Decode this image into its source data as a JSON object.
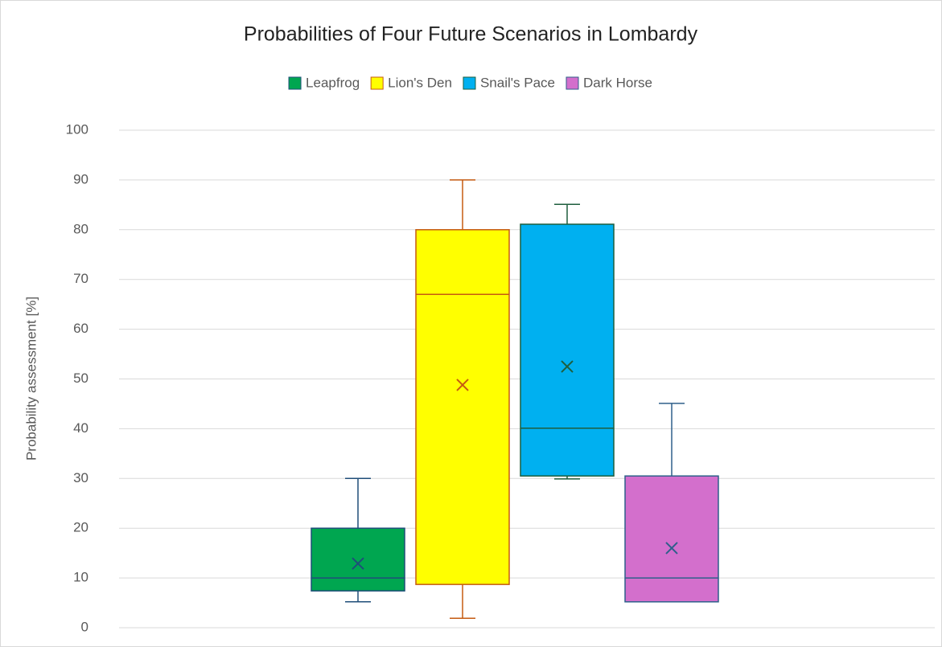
{
  "chart_data": {
    "type": "box",
    "title": "Probabilities of Four Future Scenarios in Lombardy",
    "y_label": "Probability assessment [%]",
    "ylim": [
      0,
      100
    ],
    "yticks": [
      0,
      10,
      20,
      30,
      40,
      50,
      60,
      70,
      80,
      90,
      100
    ],
    "grid": true,
    "legend": "top",
    "series": [
      {
        "name": "Leapfrog",
        "color": "#00a650",
        "line_color": "#1f4e79",
        "min": 5.2,
        "q1": 7.4,
        "median": 10,
        "q3": 20,
        "max": 30,
        "mean": 12.9
      },
      {
        "name": "Lion's Den",
        "color": "#ffff00",
        "line_color": "#c55a11",
        "min": 1.9,
        "q1": 8.7,
        "median": 67,
        "q3": 80,
        "max": 90,
        "mean": 48.8
      },
      {
        "name": "Snail's Pace",
        "color": "#00b0f0",
        "line_color": "#1e5e3e",
        "min": 29.9,
        "q1": 30.5,
        "median": 40.1,
        "q3": 81.1,
        "max": 85.1,
        "mean": 52.5
      },
      {
        "name": "Dark Horse",
        "color": "#d36fcc",
        "line_color": "#2f5f8a",
        "min": 5.2,
        "q1": 5.2,
        "median": 10,
        "q3": 30.5,
        "max": 45.1,
        "mean": 16
      }
    ]
  }
}
